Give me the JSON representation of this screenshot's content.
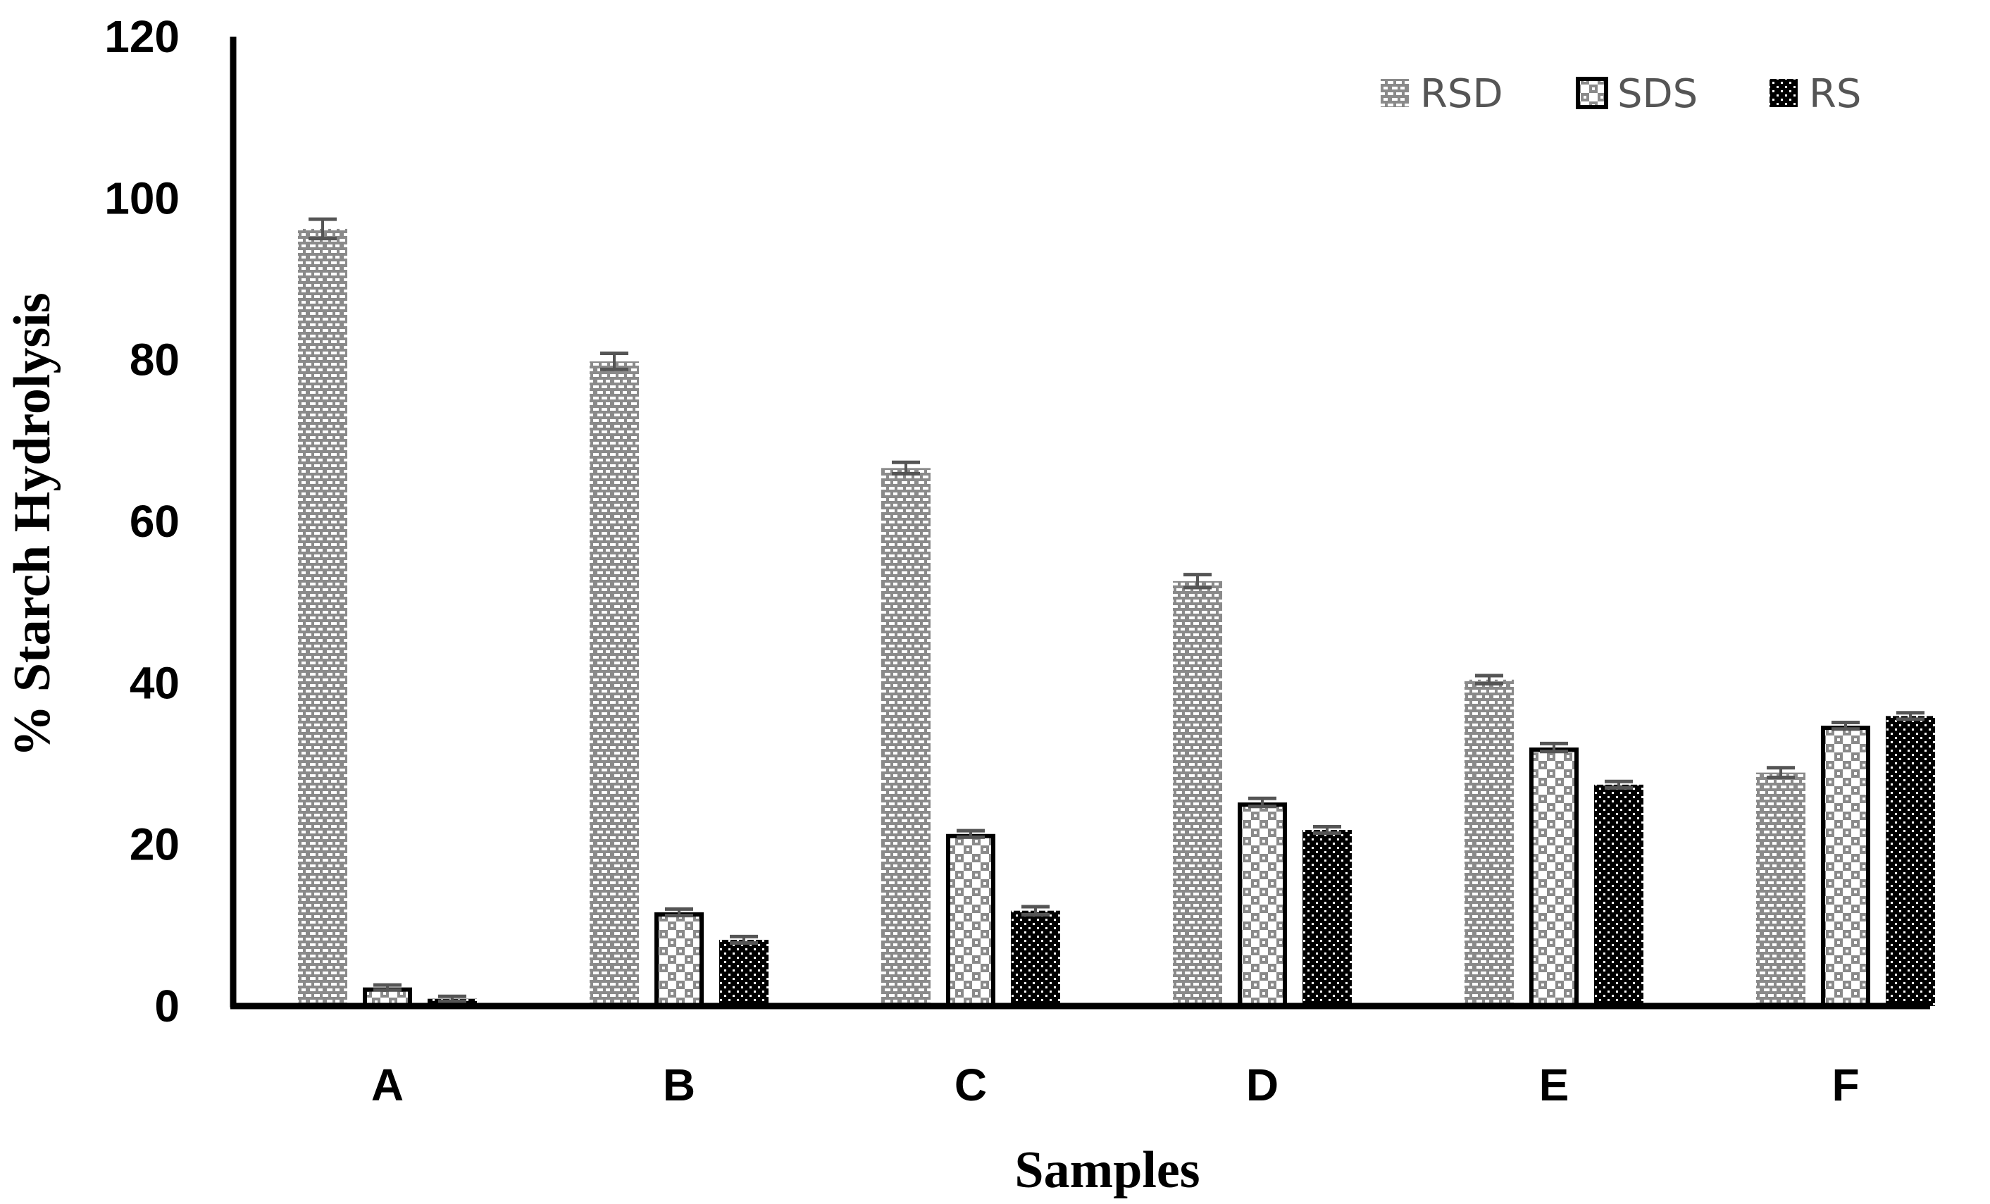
{
  "chart_data": {
    "type": "bar",
    "title": "",
    "xlabel": "Samples",
    "ylabel": "% Starch Hydrolysis",
    "categories": [
      "A",
      "B",
      "C",
      "D",
      "E",
      "F"
    ],
    "ylim": [
      0,
      120
    ],
    "yticks": [
      0,
      20,
      40,
      60,
      80,
      100,
      120
    ],
    "grid": false,
    "legend_position": "top-right",
    "series": [
      {
        "name": "RSD",
        "pattern": "bricks",
        "values": [
          96.2,
          79.8,
          66.6,
          52.6,
          40.4,
          28.9
        ],
        "errors": [
          1.2,
          1.0,
          0.7,
          0.8,
          0.5,
          0.6
        ]
      },
      {
        "name": "SDS",
        "pattern": "checker",
        "values": [
          2.3,
          11.6,
          21.3,
          25.2,
          32.0,
          34.7
        ],
        "errors": [
          0.3,
          0.4,
          0.4,
          0.5,
          0.5,
          0.4
        ]
      },
      {
        "name": "RS",
        "pattern": "dots",
        "values": [
          0.9,
          8.2,
          11.8,
          21.8,
          27.4,
          35.9
        ],
        "errors": [
          0.3,
          0.4,
          0.5,
          0.4,
          0.4,
          0.4
        ]
      }
    ],
    "colors": {
      "axis": "#000000",
      "rsd_fill": "#8a8a8a",
      "rsd_pattern": "#ffffff",
      "sds_fill": "#ffffff",
      "sds_pattern": "#8a8a8a",
      "rs_fill": "#000000",
      "rs_pattern": "#ffffff",
      "error_bar": "#555555"
    }
  }
}
